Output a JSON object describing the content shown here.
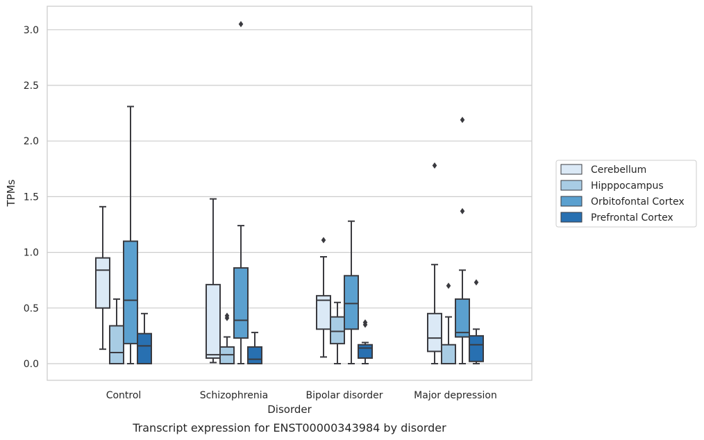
{
  "chart_data": {
    "type": "box",
    "title": "",
    "caption": "Transcript expression for ENST00000343984 by disorder",
    "xlabel": "Disorder",
    "ylabel": "TPMs",
    "ylim": [
      -0.15,
      3.2
    ],
    "yticks": [
      0.0,
      0.5,
      1.0,
      1.5,
      2.0,
      2.5,
      3.0
    ],
    "ytick_labels": [
      "0.0",
      "0.5",
      "1.0",
      "1.5",
      "2.0",
      "2.5",
      "3.0"
    ],
    "grid": "horizontal",
    "legend_position": "right",
    "categories": [
      "Control",
      "Schizophrenia",
      "Bipolar disorder",
      "Major depression"
    ],
    "series": [
      {
        "name": "Cerebellum",
        "color": "#dbe9f6",
        "boxes": [
          {
            "whislo": 0.13,
            "q1": 0.5,
            "med": 0.84,
            "q3": 0.95,
            "whishi": 1.41,
            "fliers": []
          },
          {
            "whislo": 0.01,
            "q1": 0.05,
            "med": 0.08,
            "q3": 0.71,
            "whishi": 1.48,
            "fliers": []
          },
          {
            "whislo": 0.06,
            "q1": 0.31,
            "med": 0.57,
            "q3": 0.61,
            "whishi": 0.96,
            "fliers": [
              1.11
            ]
          },
          {
            "whislo": 0.0,
            "q1": 0.11,
            "med": 0.23,
            "q3": 0.45,
            "whishi": 0.89,
            "fliers": [
              1.78
            ]
          }
        ]
      },
      {
        "name": "Hipppocampus",
        "color": "#a8cce4",
        "boxes": [
          {
            "whislo": 0.0,
            "q1": 0.0,
            "med": 0.1,
            "q3": 0.34,
            "whishi": 0.58,
            "fliers": []
          },
          {
            "whislo": 0.0,
            "q1": 0.0,
            "med": 0.08,
            "q3": 0.15,
            "whishi": 0.24,
            "fliers": [
              0.41,
              0.43
            ]
          },
          {
            "whislo": 0.0,
            "q1": 0.18,
            "med": 0.29,
            "q3": 0.42,
            "whishi": 0.55,
            "fliers": []
          },
          {
            "whislo": 0.0,
            "q1": 0.0,
            "med": 0.0,
            "q3": 0.17,
            "whishi": 0.42,
            "fliers": [
              0.7
            ]
          }
        ]
      },
      {
        "name": "Orbitofontal Cortex",
        "color": "#5ba0cf",
        "boxes": [
          {
            "whislo": 0.0,
            "q1": 0.18,
            "med": 0.57,
            "q3": 1.1,
            "whishi": 2.31,
            "fliers": []
          },
          {
            "whislo": 0.0,
            "q1": 0.23,
            "med": 0.39,
            "q3": 0.86,
            "whishi": 1.24,
            "fliers": [
              3.05
            ]
          },
          {
            "whislo": 0.0,
            "q1": 0.31,
            "med": 0.54,
            "q3": 0.79,
            "whishi": 1.28,
            "fliers": []
          },
          {
            "whislo": 0.0,
            "q1": 0.24,
            "med": 0.28,
            "q3": 0.58,
            "whishi": 0.84,
            "fliers": [
              1.37,
              2.19
            ]
          }
        ]
      },
      {
        "name": "Prefrontal Cortex",
        "color": "#2870b1",
        "boxes": [
          {
            "whislo": 0.0,
            "q1": 0.0,
            "med": 0.16,
            "q3": 0.27,
            "whishi": 0.45,
            "fliers": []
          },
          {
            "whislo": 0.0,
            "q1": 0.0,
            "med": 0.04,
            "q3": 0.15,
            "whishi": 0.28,
            "fliers": []
          },
          {
            "whislo": 0.0,
            "q1": 0.05,
            "med": 0.14,
            "q3": 0.17,
            "whishi": 0.19,
            "fliers": [
              0.35,
              0.37
            ]
          },
          {
            "whislo": 0.0,
            "q1": 0.02,
            "med": 0.17,
            "q3": 0.25,
            "whishi": 0.31,
            "fliers": [
              0.73
            ]
          }
        ]
      }
    ]
  }
}
